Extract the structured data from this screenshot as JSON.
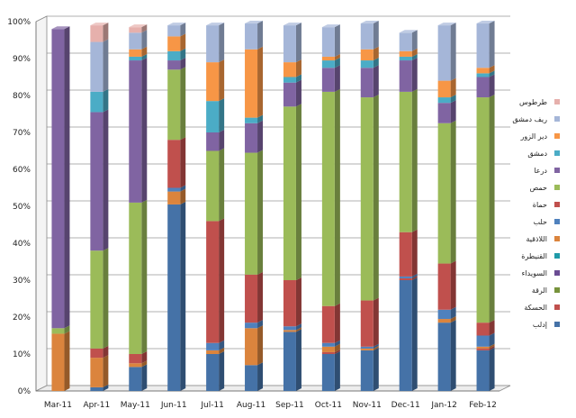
{
  "chart_data": {
    "type": "bar",
    "stacked": true,
    "percent": true,
    "style": "3d-columns",
    "grid": true,
    "legend_position": "right",
    "ylim": [
      0,
      100
    ],
    "y_ticks": [
      "0%",
      "10%",
      "20%",
      "30%",
      "40%",
      "50%",
      "60%",
      "70%",
      "80%",
      "90%",
      "100%"
    ],
    "categories": [
      "Mar-11",
      "Apr-11",
      "May-11",
      "Jun-11",
      "Jul-11",
      "Aug-11",
      "Sep-11",
      "Oct-11",
      "Nov-11",
      "Dec-11",
      "Jan-12",
      "Feb-12"
    ],
    "series": [
      {
        "name": "إدلب",
        "color": "#4572A7",
        "values": [
          0,
          1,
          6.5,
          50.5,
          10,
          7,
          16,
          10,
          11,
          30,
          18.5,
          11
        ]
      },
      {
        "name": "الحسكة",
        "color": "#C0504D",
        "values": [
          0,
          0,
          0,
          0,
          0,
          0,
          0,
          0.5,
          0,
          0.5,
          0,
          0.5
        ]
      },
      {
        "name": "اللاذقية",
        "color": "#DB843D",
        "values": [
          15.5,
          8,
          1,
          3.5,
          1,
          10,
          0.5,
          1.5,
          0.5,
          0,
          1,
          0.5
        ]
      },
      {
        "name": "حلب",
        "color": "#4F81BD",
        "values": [
          0,
          0,
          0,
          1,
          2,
          1.5,
          1,
          1,
          0.5,
          0.5,
          2.5,
          3
        ]
      },
      {
        "name": "حماة",
        "color": "#C0504D",
        "values": [
          0,
          2.5,
          2.5,
          13,
          33,
          13,
          12.5,
          10,
          12.5,
          12,
          12.5,
          3.5
        ]
      },
      {
        "name": "حمص",
        "color": "#9BBB59",
        "values": [
          1.5,
          26.5,
          41,
          19,
          19,
          33,
          47,
          58,
          55,
          38,
          38,
          61
        ]
      },
      {
        "name": "درعا",
        "color": "#8064A2",
        "values": [
          81,
          37.5,
          38.5,
          2.5,
          5,
          8,
          6.5,
          6.5,
          8,
          8.5,
          5.5,
          5.5
        ]
      },
      {
        "name": "دمشق",
        "color": "#4BACC6",
        "values": [
          0,
          5.5,
          1,
          2.5,
          8.5,
          1.5,
          1.5,
          2,
          2,
          1,
          1.5,
          1
        ]
      },
      {
        "name": "دير الزور",
        "color": "#F79646",
        "values": [
          0,
          0,
          2,
          4,
          10.5,
          18.5,
          4,
          1,
          3,
          1.5,
          4.5,
          1.5
        ]
      },
      {
        "name": "ريف دمشق",
        "color": "#A5B6D8",
        "values": [
          0,
          13.5,
          4.5,
          3,
          10,
          7,
          10,
          8,
          7,
          5,
          15,
          12
        ]
      },
      {
        "name": "طرطوس",
        "color": "#E6B0AC",
        "values": [
          0,
          4.5,
          1.5,
          0,
          0,
          0,
          0,
          0,
          0,
          0,
          0,
          0
        ]
      },
      {
        "name": "القنيطرة",
        "color": "#1F9AA8",
        "values": [
          0,
          0,
          0,
          0,
          0,
          0,
          0,
          0,
          0,
          0,
          0,
          0
        ]
      },
      {
        "name": "السويداء",
        "color": "#6A4C93",
        "values": [
          0,
          0,
          0,
          0,
          0,
          0,
          0,
          0,
          0,
          0,
          0,
          0
        ]
      },
      {
        "name": "الرقة",
        "color": "#77933C",
        "values": [
          0,
          0,
          0,
          0,
          0,
          0,
          0,
          0,
          0,
          0,
          0,
          0
        ]
      }
    ],
    "legend_order": [
      "طرطوس",
      "ريف دمشق",
      "دير الزور",
      "دمشق",
      "درعا",
      "حمص",
      "حماة",
      "حلب",
      "اللاذقية",
      "القنيطرة",
      "السويداء",
      "الرقة",
      "الحسكة",
      "إدلب"
    ]
  }
}
